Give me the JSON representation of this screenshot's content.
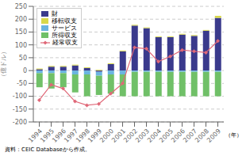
{
  "chart_data": {
    "type": "bar",
    "stacked": true,
    "xlabel": "（年）",
    "ylabel": "（億ドル）",
    "annotations": [
      "資料：CEIC Databaseから作成。"
    ],
    "categories": [
      "1994",
      "1995",
      "1996",
      "1997",
      "1998",
      "1999",
      "2000",
      "2001",
      "2002",
      "2003",
      "2004",
      "2005",
      "2006",
      "2007",
      "2008",
      "2009"
    ],
    "series": [
      {
        "name": "財",
        "type": "bar",
        "color": "#3a3a8c",
        "values": [
          5,
          15,
          15,
          20,
          10,
          -5,
          25,
          75,
          175,
          165,
          130,
          130,
          140,
          135,
          155,
          205
        ]
      },
      {
        "name": "移転収支",
        "type": "bar",
        "color": "#d8d84a",
        "values": [
          3,
          3,
          3,
          3,
          3,
          3,
          3,
          3,
          3,
          3,
          3,
          3,
          3,
          3,
          3,
          8
        ]
      },
      {
        "name": "サービス",
        "type": "bar",
        "color": "#6ab4e0",
        "values": [
          -10,
          -10,
          -10,
          -15,
          -15,
          -15,
          -15,
          -15,
          -5,
          -5,
          -5,
          -5,
          -5,
          -5,
          -5,
          -5
        ]
      },
      {
        "name": "所得収支",
        "type": "bar",
        "color": "#70c068",
        "values": [
          -55,
          -60,
          -55,
          -70,
          -85,
          -75,
          -75,
          -85,
          -95,
          -95,
          -95,
          -95,
          -95,
          -95,
          -95,
          -95
        ]
      },
      {
        "name": "経常収支",
        "type": "line",
        "color": "#e06878",
        "marker": "diamond",
        "values": [
          -115,
          -55,
          -70,
          -120,
          -135,
          -130,
          -90,
          -50,
          90,
          85,
          35,
          55,
          80,
          75,
          70,
          115
        ]
      }
    ],
    "ylim": [
      -200,
      250
    ],
    "yticks": [
      -200,
      -150,
      -100,
      -50,
      0,
      50,
      100,
      150,
      200,
      250
    ],
    "grid": true,
    "legend": "upper left"
  }
}
